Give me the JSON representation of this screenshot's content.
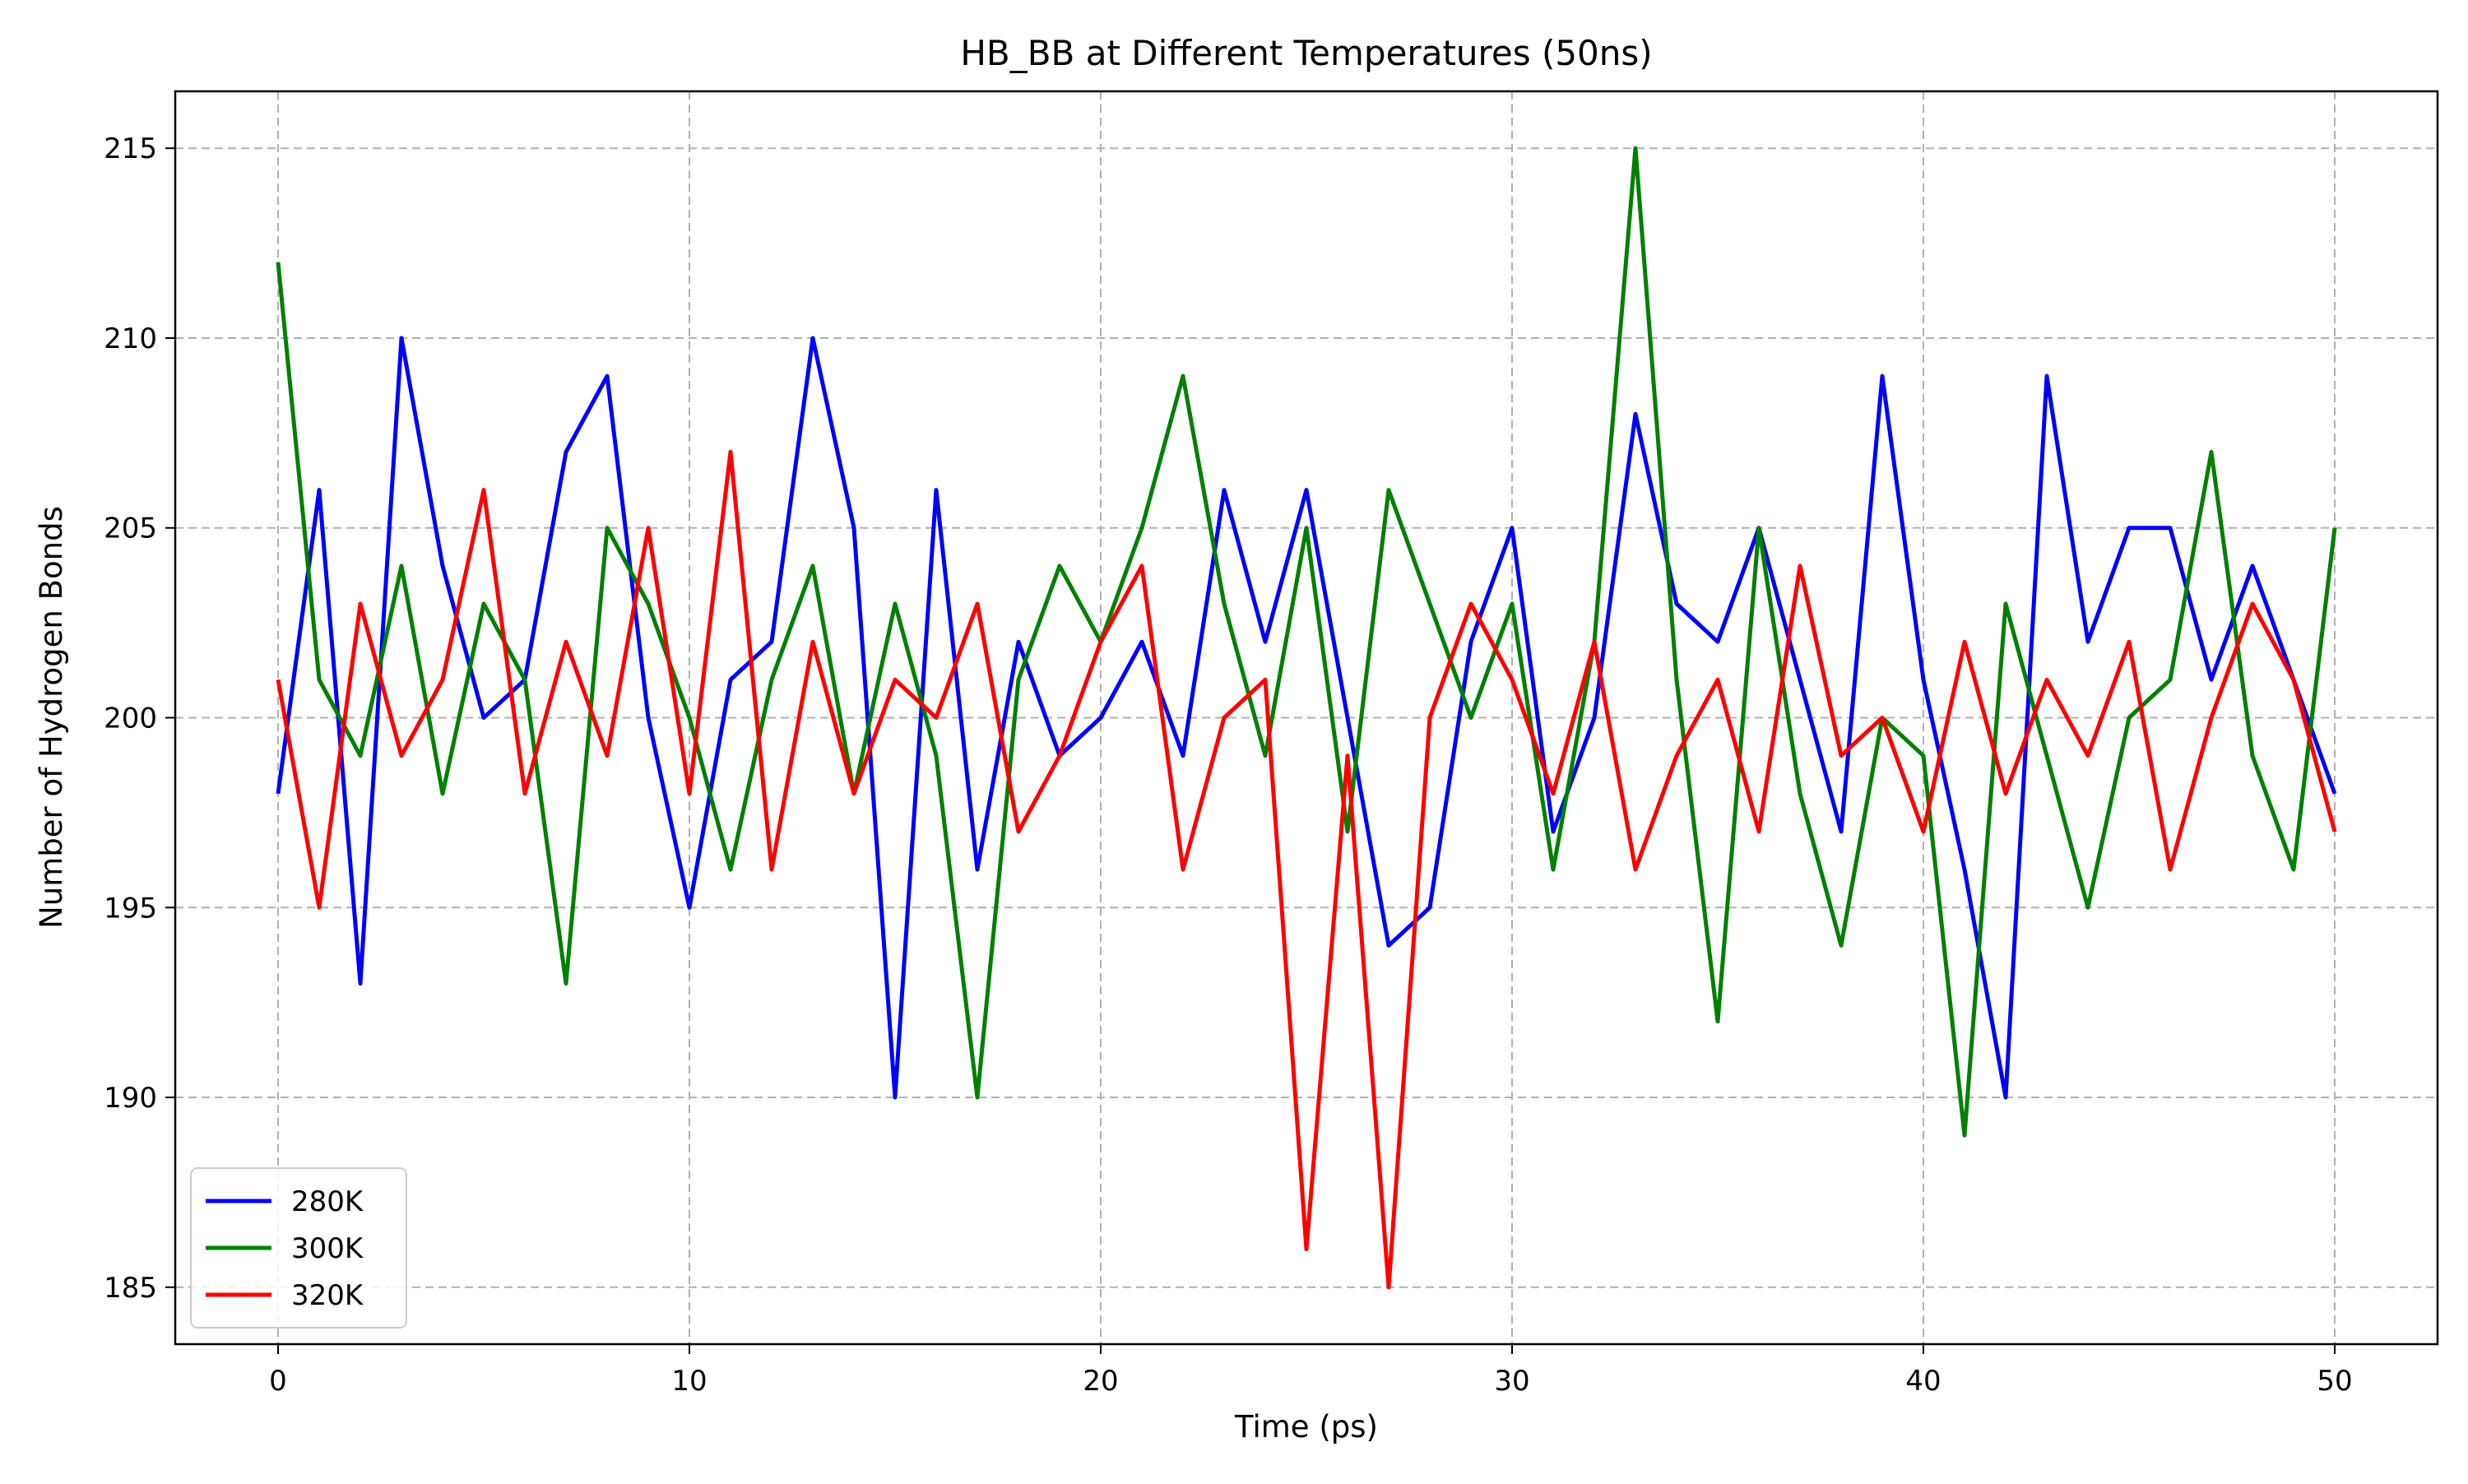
{
  "chart_data": {
    "type": "line",
    "title": "HB_BB at Different Temperatures (50ns)",
    "xlabel": "Time (ps)",
    "ylabel": "Number of Hydrogen Bonds",
    "xlim": [
      -2.5,
      52.5
    ],
    "ylim": [
      183.5,
      216.5
    ],
    "xticks": [
      0,
      10,
      20,
      30,
      40,
      50
    ],
    "yticks": [
      185,
      190,
      195,
      200,
      205,
      210,
      215
    ],
    "grid": true,
    "legend_position": "lower left",
    "x_start": 0,
    "x_step": 1,
    "series": [
      {
        "name": "280K",
        "color": "#0000ff",
        "values": [
          198,
          206,
          193,
          210,
          204,
          200,
          201,
          207,
          209,
          200,
          195,
          201,
          202,
          210,
          205,
          190,
          206,
          196,
          202,
          199,
          200,
          202,
          199,
          206,
          202,
          206,
          200,
          194,
          195,
          202,
          205,
          197,
          200,
          208,
          203,
          202,
          205,
          201,
          197,
          209,
          201,
          196,
          190,
          209,
          202,
          205,
          205,
          201,
          204,
          201,
          198
        ]
      },
      {
        "name": "300K",
        "color": "#008000",
        "values": [
          212,
          201,
          199,
          204,
          198,
          203,
          201,
          193,
          205,
          203,
          200,
          196,
          201,
          204,
          198,
          203,
          199,
          190,
          201,
          204,
          202,
          205,
          209,
          203,
          199,
          205,
          197,
          206,
          203,
          200,
          203,
          196,
          202,
          215,
          201,
          192,
          205,
          198,
          194,
          200,
          199,
          189,
          203,
          199,
          195,
          200,
          201,
          207,
          199,
          196,
          205
        ]
      },
      {
        "name": "320K",
        "color": "#ff0000",
        "values": [
          201,
          195,
          203,
          199,
          201,
          206,
          198,
          202,
          199,
          205,
          198,
          207,
          196,
          202,
          198,
          201,
          200,
          203,
          197,
          199,
          202,
          204,
          196,
          200,
          201,
          186,
          199,
          185,
          200,
          203,
          201,
          198,
          202,
          196,
          199,
          201,
          197,
          204,
          199,
          200,
          197,
          202,
          198,
          201,
          199,
          202,
          196,
          200,
          203,
          201,
          197
        ]
      }
    ]
  }
}
